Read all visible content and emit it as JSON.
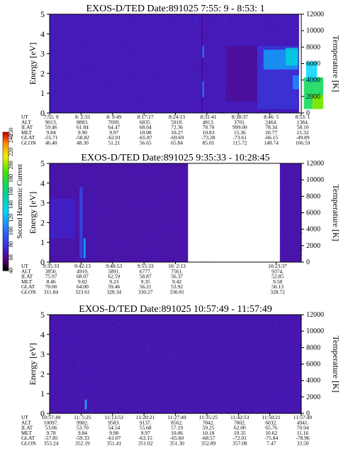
{
  "panels": [
    {
      "title": "EXOS-D/TED   Date:891025  7:55: 9 - 8:53: 1",
      "orbit_info": {
        "row_labels": [
          "UT",
          "ALT",
          "ILAT",
          "MLT",
          "GLAT",
          "GLON"
        ],
        "columns": [
          [
            "7:55: 9",
            "9013.",
            "59.46",
            "9.84",
            "-55.71",
            "46.40"
          ],
          [
            "8: 2:33",
            "8883.",
            "61.84",
            "9.90",
            "-58.82",
            "48.30"
          ],
          [
            "8: 9:49",
            "7699.",
            "64.47",
            "9.97",
            "-62.01",
            "51.21"
          ],
          [
            "8:17:17",
            "6835.",
            "68.04",
            "10.08",
            "-65.87",
            "56.65"
          ],
          [
            "8:24:13",
            "5918.",
            "72.36",
            "10.27",
            "-69.69",
            "65.84"
          ],
          [
            "8:31:41",
            "4813.",
            "78.70",
            "10.83",
            "-73.28",
            "85.01"
          ],
          [
            "8:38:37",
            "3701.",
            "999.00",
            "15.36",
            "-73.61",
            "115.72"
          ],
          [
            "8:46: 5",
            "2464.",
            "78.34",
            "20.77",
            "-66.15",
            "148.74"
          ],
          [
            "8:53: 1",
            "1384.",
            "58.10",
            "21.32",
            "-49.89",
            "166.59"
          ]
        ],
        "column_slots": [
          0,
          1,
          2,
          3,
          4,
          5,
          6,
          7,
          8
        ]
      },
      "features": [
        {
          "kind": "band",
          "x": [
            4.82,
            4.88
          ],
          "e": [
            0,
            5
          ],
          "level": 60,
          "alpha": 0.85
        },
        {
          "kind": "band",
          "x": [
            4.86,
            4.9
          ],
          "e": [
            0.8,
            1.6
          ],
          "level": 110,
          "alpha": 1
        },
        {
          "kind": "band",
          "x": [
            4.86,
            4.9
          ],
          "e": [
            2.8,
            3.4
          ],
          "level": 110,
          "alpha": 1
        },
        {
          "kind": "band",
          "x": [
            5.6,
            6.6
          ],
          "e": [
            0.6,
            3.4
          ],
          "level": 55,
          "alpha": 0.45
        },
        {
          "kind": "band",
          "x": [
            6.6,
            7.9
          ],
          "e": [
            0.2,
            3.4
          ],
          "level": 85,
          "alpha": 0.55
        },
        {
          "kind": "band",
          "x": [
            6.8,
            7.9
          ],
          "e": [
            2.2,
            3.2
          ],
          "level": 120,
          "alpha": 0.7
        },
        {
          "kind": "band",
          "x": [
            7.5,
            7.9
          ],
          "e": [
            2.4,
            3.3
          ],
          "level": 140,
          "alpha": 0.8
        },
        {
          "kind": "band",
          "x": [
            8.08,
            8.7
          ],
          "e": [
            0.2,
            1.8
          ],
          "level": 170,
          "alpha": 0.9
        },
        {
          "kind": "band",
          "x": [
            8.15,
            8.5
          ],
          "e": [
            1.6,
            2.6
          ],
          "level": 130,
          "alpha": 0.85
        },
        {
          "kind": "band",
          "x": [
            8.35,
            8.7
          ],
          "e": [
            0.2,
            0.9
          ],
          "level": 200,
          "alpha": 0.9
        },
        {
          "kind": "band",
          "x": [
            7.73,
            7.95
          ],
          "e": [
            1.2,
            1.9
          ],
          "level": 110,
          "alpha": 0.8
        }
      ],
      "gaps": [
        [
          7.93,
          8.08
        ]
      ],
      "background_level": 38
    },
    {
      "title": "EXOS-D/TED   Date:891025  9:35:33 - 10:28:45",
      "orbit_info": {
        "row_labels": [
          "UT",
          "ALT",
          "ILAT",
          "MLT",
          "GLAT",
          "GLON"
        ],
        "columns": [
          [
            "9:35:33",
            "3850.",
            "75.97",
            "8.46",
            "70.00",
            "311.84"
          ],
          [
            "9:42:13",
            "4910.",
            "68.07",
            "9.02",
            "64.00",
            "323.61"
          ],
          [
            "9:48:53",
            "5891.",
            "62.59",
            "9.23",
            "59.46",
            "328.34"
          ],
          [
            "9:55:33",
            "6777.",
            "58.87",
            "9.35",
            "56.21",
            "330.27"
          ],
          [
            "10: 2:13",
            "7561.",
            "56.37",
            "9.42",
            "53.92",
            "330.81"
          ],
          [
            "10:23:37",
            "9374.",
            "52.85",
            "9.58",
            "50.13",
            "328.72"
          ]
        ],
        "column_slots": [
          0,
          1,
          2,
          3,
          4,
          7.2
        ]
      },
      "features": [
        {
          "kind": "band",
          "x": [
            0,
            0.8
          ],
          "e": [
            1.2,
            3.2
          ],
          "level": 75,
          "alpha": 0.55
        },
        {
          "kind": "band",
          "x": [
            0.95,
            1.05
          ],
          "e": [
            0.2,
            3.8
          ],
          "level": 90,
          "alpha": 0.7
        },
        {
          "kind": "band",
          "x": [
            1.08,
            1.14
          ],
          "e": [
            0.2,
            1.2
          ],
          "level": 120,
          "alpha": 0.9
        }
      ],
      "gaps": [
        [
          4.4,
          7.32
        ]
      ],
      "background_level": 35
    },
    {
      "title": "EXOS-D/TED   Date:891025  10:57:49 - 11:57:49",
      "orbit_info": {
        "row_labels": [
          "UT",
          "ALT",
          "ILAT",
          "MLT",
          "GLAT",
          "GLON"
        ],
        "columns": [
          [
            "10:57:49",
            "10097.",
            "53.06",
            "9.78",
            "-57.85",
            "353.24"
          ],
          [
            "11: 5:25",
            "9902.",
            "53.70",
            "9.84",
            "-59.33",
            "352.19"
          ],
          [
            "11:13:53",
            "9583.",
            "54.54",
            "9.90",
            "-61.07",
            "351.41"
          ],
          [
            "11:20:21",
            "9137.",
            "55.68",
            "9.97",
            "-63.15",
            "351.02"
          ],
          [
            "11:27:49",
            "8562.",
            "57.19",
            "10.06",
            "-65.60",
            "351.30"
          ],
          [
            "11:35:25",
            "7842.",
            "59.25",
            "10.18",
            "-68.57",
            "352.89"
          ],
          [
            "11:42:53",
            "7002.",
            "62.00",
            "10.35",
            "-72.01",
            "357.08"
          ],
          [
            "11:50:21",
            "6032.",
            "65.76",
            "10.62",
            "-75.84",
            "7.47"
          ],
          [
            "11:57:49",
            "4941.",
            "70.94",
            "11.16",
            "-78.96",
            "33.50"
          ]
        ],
        "column_slots": [
          0,
          1,
          2,
          3,
          4,
          5,
          6,
          7,
          8
        ]
      },
      "features": [
        {
          "kind": "band",
          "x": [
            1.12,
            1.18
          ],
          "e": [
            0.2,
            0.7
          ],
          "level": 120,
          "alpha": 0.9
        }
      ],
      "gaps": [],
      "background_level": 36
    }
  ],
  "axes": {
    "energy_label": "Energy [eV]",
    "energy_ticks": [
      "0",
      "1",
      "2",
      "3",
      "4",
      "5"
    ],
    "temperature_label": "Temperature [K]",
    "temperature_ticks": [
      "0",
      "2000",
      "4000",
      "6000",
      "8000",
      "10000",
      "12000"
    ]
  },
  "colorbar": {
    "label": "Second Harmonic Current",
    "ticks": [
      "40",
      "60",
      "80",
      "100",
      "120",
      "140",
      "160",
      "180",
      "200",
      "220",
      "240",
      "250"
    ]
  },
  "chart_data": [
    {
      "type": "heatmap",
      "title": "EXOS-D/TED   Date:891025  7:55: 9 - 8:53: 1",
      "xlabel": "",
      "ylabel": "Energy [eV]",
      "y2label": "Temperature [K]",
      "ylim": [
        0,
        5
      ],
      "y2lim": [
        0,
        12000
      ],
      "x_ticks": [
        "7:55: 9",
        "8: 2:33",
        "8: 9:49",
        "8:17:17",
        "8:24:13",
        "8:31:41",
        "8:38:37",
        "8:46: 5",
        "8:53: 1"
      ],
      "color_range": [
        40,
        250
      ]
    },
    {
      "type": "heatmap",
      "title": "EXOS-D/TED   Date:891025  9:35:33 - 10:28:45",
      "xlabel": "",
      "ylabel": "Energy [eV]",
      "y2label": "Temperature [K]",
      "ylim": [
        0,
        5
      ],
      "y2lim": [
        0,
        12000
      ],
      "x_ticks": [
        "9:35:33",
        "9:42:13",
        "9:48:53",
        "9:55:33",
        "10: 2:13",
        "10:23:37"
      ],
      "color_range": [
        40,
        250
      ]
    },
    {
      "type": "heatmap",
      "title": "EXOS-D/TED   Date:891025  10:57:49 - 11:57:49",
      "xlabel": "",
      "ylabel": "Energy [eV]",
      "y2label": "Temperature [K]",
      "ylim": [
        0,
        5
      ],
      "y2lim": [
        0,
        12000
      ],
      "x_ticks": [
        "10:57:49",
        "11: 5:25",
        "11:13:53",
        "11:20:21",
        "11:27:49",
        "11:35:25",
        "11:42:53",
        "11:50:21",
        "11:57:49"
      ],
      "color_range": [
        40,
        250
      ]
    }
  ]
}
